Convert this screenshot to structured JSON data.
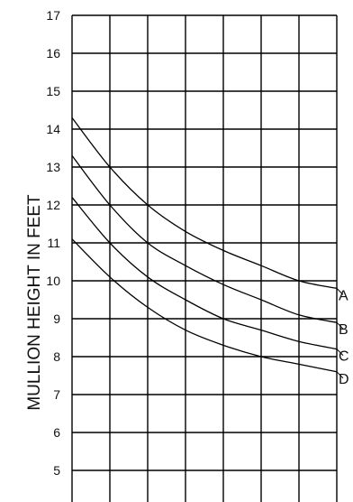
{
  "chart_data": {
    "type": "line",
    "ylabel": "MULLION HEIGHT IN FEET",
    "xlabel": "",
    "title": "",
    "ylim": [
      4.5,
      17
    ],
    "xlim": [
      0,
      7
    ],
    "grid": true,
    "y_ticks": [
      "5",
      "6",
      "7",
      "8",
      "9",
      "10",
      "11",
      "12",
      "13",
      "14",
      "15",
      "16",
      "17"
    ],
    "series": [
      {
        "name": "A",
        "x": [
          0,
          1,
          2,
          3,
          4,
          5,
          6,
          7
        ],
        "values": [
          14.3,
          13.0,
          12.0,
          11.3,
          10.8,
          10.4,
          10.0,
          9.8
        ]
      },
      {
        "name": "B",
        "x": [
          0,
          1,
          2,
          3,
          4,
          5,
          6,
          7
        ],
        "values": [
          13.3,
          12.0,
          11.0,
          10.4,
          9.9,
          9.5,
          9.1,
          8.9
        ]
      },
      {
        "name": "C",
        "x": [
          0,
          1,
          2,
          3,
          4,
          5,
          6,
          7
        ],
        "values": [
          12.2,
          11.0,
          10.1,
          9.5,
          9.0,
          8.7,
          8.4,
          8.2
        ]
      },
      {
        "name": "D",
        "x": [
          0,
          1,
          2,
          3,
          4,
          5,
          6,
          7
        ],
        "values": [
          11.1,
          10.1,
          9.3,
          8.7,
          8.3,
          8.0,
          7.8,
          7.6
        ]
      }
    ]
  }
}
